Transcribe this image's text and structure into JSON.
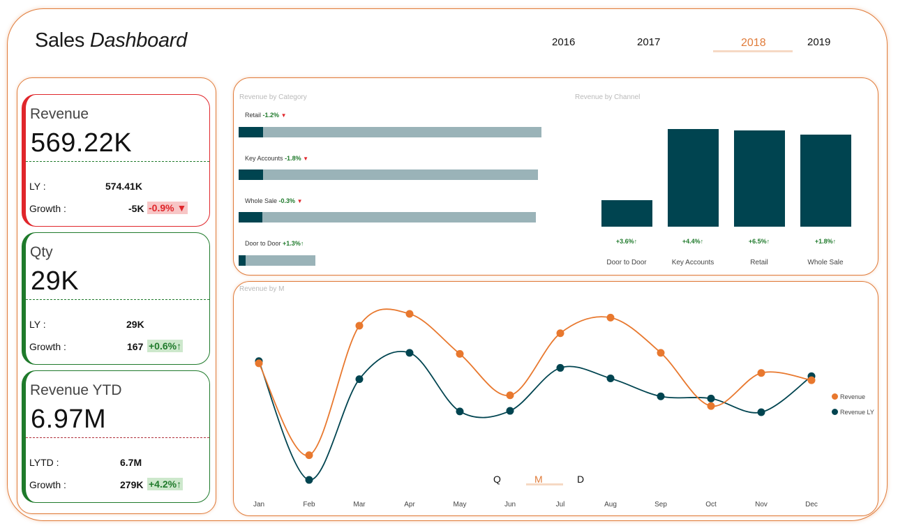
{
  "header": {
    "title_part1": "Sales",
    "title_part2": "Dashboard",
    "years": [
      "2016",
      "2017",
      "2018",
      "2019"
    ],
    "selected_year": "2018"
  },
  "kpis": {
    "revenue": {
      "name": "Revenue",
      "value": "569.22K",
      "ly_label": "LY :",
      "ly_value": "574.41K",
      "growth_label": "Growth :",
      "growth_abs": "-5K",
      "growth_pct": "-0.9% ▼"
    },
    "qty": {
      "name": "Qty",
      "value": "29K",
      "ly_label": "LY :",
      "ly_value": "29K",
      "growth_label": "Growth :",
      "growth_abs": "167",
      "growth_pct": "+0.6%↑"
    },
    "ytd": {
      "name": "Revenue YTD",
      "value": "6.97M",
      "ly_label": "LYTD :",
      "ly_value": "6.7M",
      "growth_label": "Growth :",
      "growth_abs": "279K",
      "growth_pct": "+4.2%↑"
    }
  },
  "category_chart": {
    "title": "Revenue by Category",
    "items": [
      {
        "name": "Retail",
        "change": "-1.2%",
        "arrow": "▼",
        "current_fraction": 0.08,
        "total_fraction": 1.0
      },
      {
        "name": "Key Accounts",
        "change": "-1.8%",
        "arrow": "▼",
        "current_fraction": 0.08,
        "total_fraction": 0.988
      },
      {
        "name": "Whole Sale",
        "change": "-0.3%",
        "arrow": "▼",
        "current_fraction": 0.078,
        "total_fraction": 0.981
      },
      {
        "name": "Door to Door",
        "change": "+1.3%↑",
        "arrow": "",
        "current_fraction": 0.023,
        "total_fraction": 0.253
      }
    ]
  },
  "channel_chart": {
    "title": "Revenue by Channel",
    "categories": [
      "Door to Door",
      "Key Accounts",
      "Retail",
      "Whole Sale"
    ],
    "values": [
      35,
      129,
      127,
      122
    ],
    "changes": [
      "+3.6%↑",
      "+4.4%↑",
      "+6.5%↑",
      "+1.8%↑"
    ]
  },
  "chart_data": {
    "type": "line",
    "title": "Revenue by M",
    "categories": [
      "Jan",
      "Feb",
      "Mar",
      "Apr",
      "May",
      "Jun",
      "Jul",
      "Aug",
      "Sep",
      "Oct",
      "Nov",
      "Dec"
    ],
    "series": [
      {
        "name": "Revenue",
        "color": "#e8782e",
        "values": [
          46.5,
          12.3,
          60.5,
          64.9,
          50.0,
          34.6,
          57.7,
          63.5,
          50.4,
          30.6,
          42.9,
          40.2
        ]
      },
      {
        "name": "Revenue LY",
        "color": "#004450",
        "values": [
          47.3,
          3.1,
          40.6,
          50.4,
          28.6,
          28.8,
          44.8,
          40.9,
          34.2,
          33.4,
          28.3,
          41.7
        ]
      }
    ],
    "ylim": [
      0,
      70
    ],
    "legend": "right"
  },
  "granularity": {
    "options": [
      "Q",
      "M",
      "D"
    ],
    "selected": "M"
  },
  "colors": {
    "accent": "#e07b39",
    "primary": "#004450",
    "bar_bg": "#9ab3b8",
    "negative": "#e0262b",
    "positive": "#1f7a2b"
  }
}
